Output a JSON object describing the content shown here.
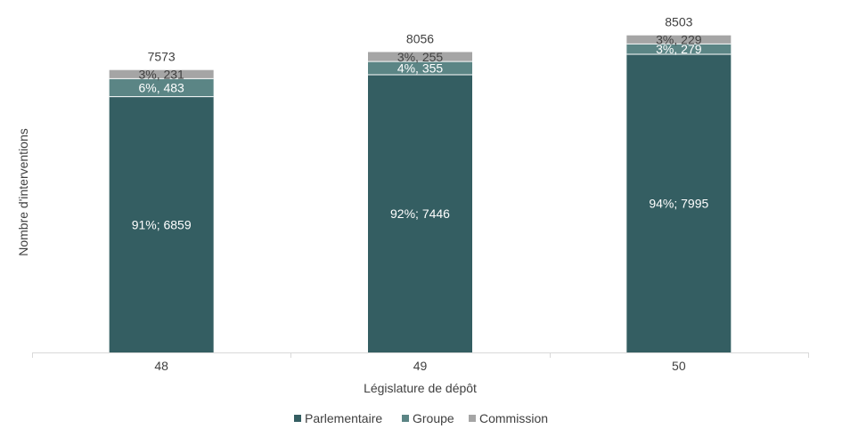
{
  "chart_data": {
    "type": "bar",
    "stacked": true,
    "title": "",
    "xlabel": "Législature de dépôt",
    "ylabel": "Nombre d'interventions",
    "categories": [
      "48",
      "49",
      "50"
    ],
    "totals": [
      7573,
      8056,
      8503
    ],
    "series": [
      {
        "name": "Parlementaire",
        "color": "#345e62",
        "values": [
          6859,
          7446,
          7995
        ],
        "labels": [
          "91%; 6859",
          "92%; 7446",
          "94%; 7995"
        ]
      },
      {
        "name": "Groupe",
        "color": "#5b8585",
        "values": [
          483,
          355,
          279
        ],
        "labels": [
          "6%, 483",
          "4%, 355",
          "3%, 279"
        ]
      },
      {
        "name": "Commission",
        "color": "#a5a5a5",
        "values": [
          231,
          255,
          229
        ],
        "labels": [
          "3%, 231",
          "3%, 255",
          "3%, 229"
        ]
      }
    ],
    "ylim": [
      0,
      8800
    ],
    "y_axis_visible": false,
    "grid": false,
    "legend": "bottom"
  }
}
